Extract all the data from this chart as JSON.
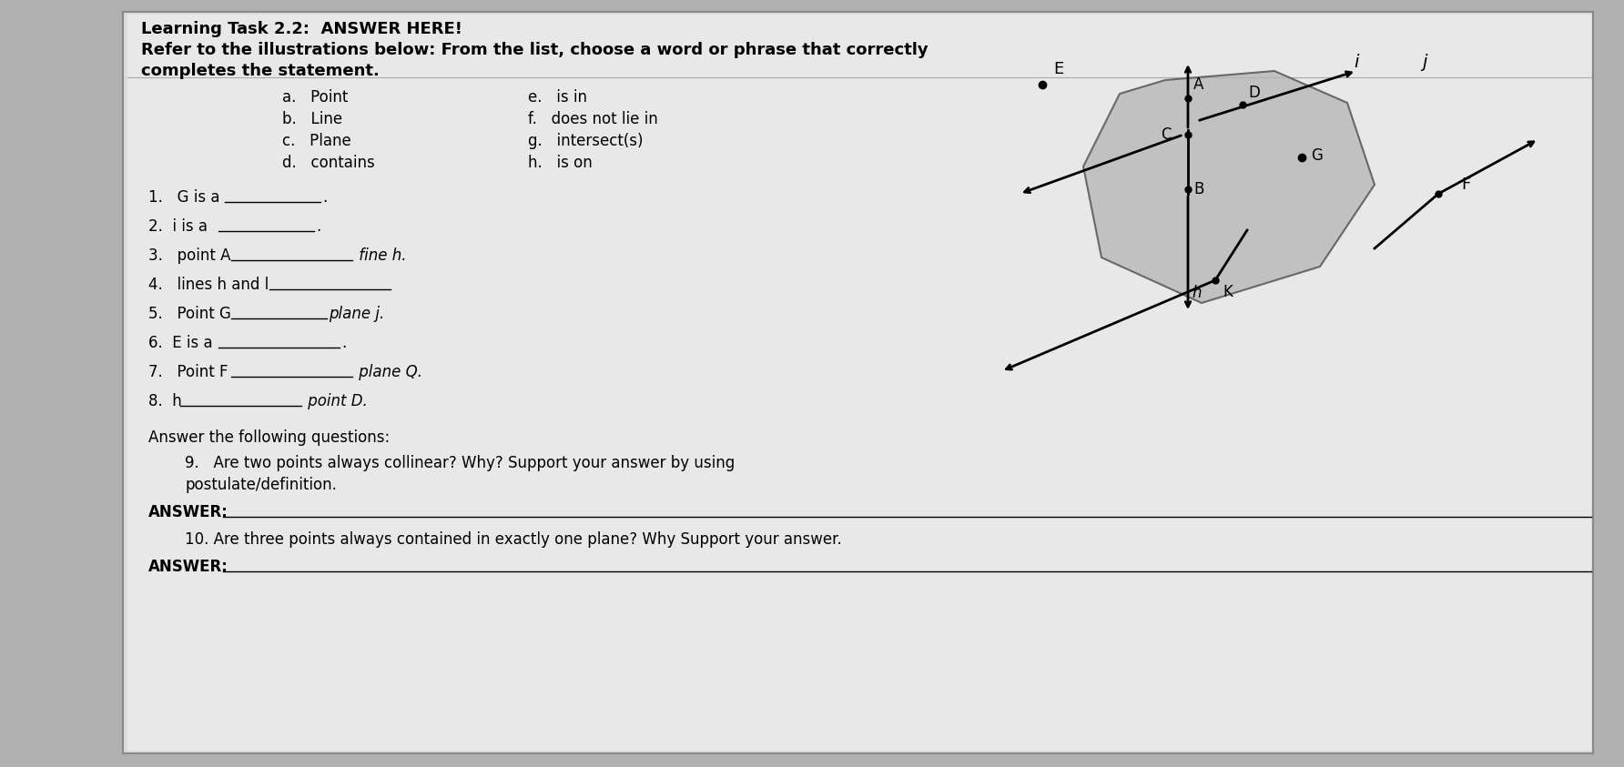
{
  "bg_color": "#b0b0b0",
  "paper_color": "#e4e4e4",
  "title_line1": "Learning Task 2.2:  ANSWER HERE!",
  "title_line2": "Refer to the illustrations below: From the list, choose a word or phrase that correctly",
  "title_line3": "completes the statement.",
  "list_items_left": [
    "a.   Point",
    "b.   Line",
    "c.   Plane",
    "d.   contains"
  ],
  "list_items_right": [
    "e.   is in",
    "f.   does not lie in",
    "g.   intersect(s)",
    "h.   is on"
  ],
  "questions": [
    [
      "1.   G is a ",
      "_______________",
      "."
    ],
    [
      "2.  i is a ",
      "_______________",
      "."
    ],
    [
      "3.   point A ",
      "___________________",
      " fine h."
    ],
    [
      "4.   lines h and l ",
      "___________________",
      ""
    ],
    [
      "5.   Point G ",
      "_______________",
      "plane j."
    ],
    [
      "6.  E is a ",
      "___________________",
      "."
    ],
    [
      "7.   Point F ",
      "___________________",
      " plane Q."
    ],
    [
      "8.  h",
      "___________________",
      " point D."
    ]
  ]
}
